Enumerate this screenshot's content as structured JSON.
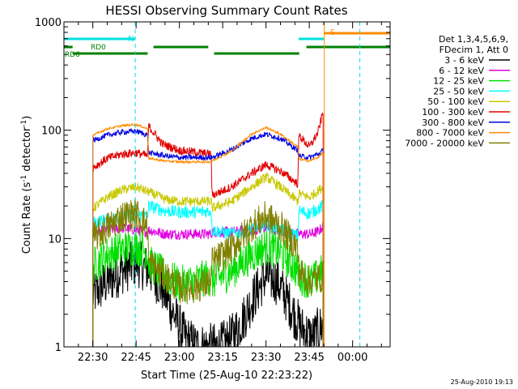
{
  "chart_data": {
    "type": "line",
    "title": "HESSI Observing Summary Count Rates",
    "xlabel": "Start Time (25-Aug-10 22:23:22)",
    "ylabel_main": "Count Rate (s",
    "ylabel_exp1": "-1",
    "ylabel_mid": " detector",
    "ylabel_exp2": "-1",
    "ylabel_end": ")",
    "yscale": "log",
    "ylim": [
      1,
      1000
    ],
    "xlim_minutes": [
      -10,
      103
    ],
    "x_ticks": [
      {
        "min": 0,
        "label": "22:30"
      },
      {
        "min": 15,
        "label": "22:45"
      },
      {
        "min": 30,
        "label": "23:00"
      },
      {
        "min": 45,
        "label": "23:15"
      },
      {
        "min": 60,
        "label": "23:30"
      },
      {
        "min": 75,
        "label": "23:45"
      },
      {
        "min": 90,
        "label": "00:00"
      }
    ],
    "y_ticks": [
      {
        "value": 1,
        "label": "1"
      },
      {
        "value": 10,
        "label": "10"
      },
      {
        "value": 100,
        "label": "100"
      },
      {
        "value": 1000,
        "label": "1000"
      }
    ],
    "legend": {
      "position": "right",
      "header": [
        "Det 1,3,4,5,6,9,",
        "FDecim 1, Att 0"
      ],
      "entries": [
        {
          "label": "3 - 6 keV",
          "color": "#000000"
        },
        {
          "label": "6 - 12 keV",
          "color": "#e000e0"
        },
        {
          "label": "12 - 25 keV",
          "color": "#00e000"
        },
        {
          "label": "25 - 50 keV",
          "color": "#00ffff"
        },
        {
          "label": "50 - 100 keV",
          "color": "#c8c800"
        },
        {
          "label": "100 - 300 keV",
          "color": "#e00000"
        },
        {
          "label": "300 - 800 keV",
          "color": "#0000e0"
        },
        {
          "label": "800 - 7000 keV",
          "color": "#ff8c00"
        },
        {
          "label": "7000 - 20000 keV",
          "color": "#808000"
        }
      ]
    },
    "segments": [
      {
        "from": 0,
        "to": 19.2
      },
      {
        "from": 19.2,
        "to": 41.2
      },
      {
        "from": 41.2,
        "to": 71.3
      },
      {
        "from": 71.3,
        "to": 79.8
      }
    ],
    "series": [
      {
        "name": "3 - 6 keV",
        "color": "#000000",
        "noise": 0.45,
        "points": [
          [
            0,
            3
          ],
          [
            5,
            4
          ],
          [
            10,
            5
          ],
          [
            15,
            6
          ],
          [
            20,
            5
          ],
          [
            24,
            3.5
          ],
          [
            28,
            2
          ],
          [
            32,
            1.2
          ],
          [
            36,
            1
          ],
          [
            40,
            1
          ],
          [
            44,
            1
          ],
          [
            48,
            1.2
          ],
          [
            52,
            1.8
          ],
          [
            56,
            3
          ],
          [
            60,
            4.5
          ],
          [
            64,
            4
          ],
          [
            68,
            2.5
          ],
          [
            72,
            1.5
          ],
          [
            76,
            1.2
          ],
          [
            79.8,
            1.6
          ]
        ]
      },
      {
        "name": "6 - 12 keV",
        "color": "#e000e0",
        "noise": 0.1,
        "points": [
          [
            0,
            11
          ],
          [
            5,
            12
          ],
          [
            10,
            12.5
          ],
          [
            15,
            12
          ],
          [
            19,
            11.5
          ],
          [
            19.3,
            12
          ],
          [
            25,
            11
          ],
          [
            30,
            11
          ],
          [
            35,
            11
          ],
          [
            41,
            11
          ],
          [
            41.3,
            11.5
          ],
          [
            48,
            11.5
          ],
          [
            55,
            12
          ],
          [
            60,
            12.5
          ],
          [
            65,
            12
          ],
          [
            71,
            11
          ],
          [
            71.4,
            11
          ],
          [
            75,
            11
          ],
          [
            78,
            11.5
          ],
          [
            79.8,
            13
          ]
        ]
      },
      {
        "name": "12 - 25 keV",
        "color": "#00e000",
        "noise": 0.35,
        "points": [
          [
            0,
            5.5
          ],
          [
            4,
            7
          ],
          [
            10,
            8
          ],
          [
            15,
            8.5
          ],
          [
            19,
            7.5
          ],
          [
            19.3,
            6
          ],
          [
            25,
            4.5
          ],
          [
            30,
            3.8
          ],
          [
            35,
            4
          ],
          [
            41,
            4.5
          ],
          [
            41.3,
            4
          ],
          [
            48,
            5
          ],
          [
            55,
            7
          ],
          [
            60,
            8.5
          ],
          [
            65,
            7.5
          ],
          [
            71,
            5
          ],
          [
            71.4,
            4.5
          ],
          [
            76,
            4
          ],
          [
            79.8,
            5
          ]
        ]
      },
      {
        "name": "25 - 50 keV",
        "color": "#00ffff",
        "noise": 0.12,
        "points": [
          [
            0,
            14
          ],
          [
            5,
            15
          ],
          [
            10,
            16
          ],
          [
            15,
            16.5
          ],
          [
            19,
            16
          ],
          [
            19.3,
            20
          ],
          [
            25,
            18
          ],
          [
            30,
            17.5
          ],
          [
            35,
            17.5
          ],
          [
            41,
            18
          ],
          [
            41.3,
            12
          ],
          [
            48,
            11
          ],
          [
            55,
            12
          ],
          [
            60,
            13.5
          ],
          [
            65,
            12
          ],
          [
            71,
            10.5
          ],
          [
            71.4,
            18
          ],
          [
            75,
            17
          ],
          [
            79.8,
            20
          ]
        ]
      },
      {
        "name": "50 - 100 keV",
        "color": "#c8c800",
        "noise": 0.09,
        "points": [
          [
            0,
            19
          ],
          [
            5,
            24
          ],
          [
            10,
            28
          ],
          [
            15,
            30
          ],
          [
            19,
            27
          ],
          [
            19.3,
            27
          ],
          [
            25,
            23
          ],
          [
            30,
            22
          ],
          [
            35,
            22
          ],
          [
            41,
            22
          ],
          [
            41.3,
            19
          ],
          [
            48,
            22
          ],
          [
            55,
            30
          ],
          [
            60,
            37
          ],
          [
            65,
            30
          ],
          [
            71,
            22
          ],
          [
            71.4,
            26
          ],
          [
            75,
            24
          ],
          [
            79.8,
            30
          ]
        ]
      },
      {
        "name": "100 - 300 keV",
        "color": "#e00000",
        "noise": 0.08,
        "points": [
          [
            0,
            45
          ],
          [
            5,
            55
          ],
          [
            10,
            60
          ],
          [
            15,
            62
          ],
          [
            19,
            58
          ],
          [
            19.3,
            110
          ],
          [
            24,
            75
          ],
          [
            30,
            65
          ],
          [
            35,
            63
          ],
          [
            41,
            60
          ],
          [
            41.3,
            25
          ],
          [
            48,
            30
          ],
          [
            55,
            40
          ],
          [
            60,
            48
          ],
          [
            65,
            42
          ],
          [
            71,
            32
          ],
          [
            71.4,
            90
          ],
          [
            75,
            70
          ],
          [
            78,
            95
          ],
          [
            79.8,
            150
          ]
        ]
      },
      {
        "name": "300 - 800 keV",
        "color": "#0000e0",
        "noise": 0.05,
        "points": [
          [
            0,
            80
          ],
          [
            5,
            90
          ],
          [
            10,
            96
          ],
          [
            15,
            98
          ],
          [
            19,
            90
          ],
          [
            19.3,
            62
          ],
          [
            25,
            58
          ],
          [
            30,
            56
          ],
          [
            35,
            56
          ],
          [
            41,
            56
          ],
          [
            41.3,
            56
          ],
          [
            48,
            66
          ],
          [
            55,
            84
          ],
          [
            60,
            92
          ],
          [
            65,
            84
          ],
          [
            71,
            65
          ],
          [
            71.4,
            58
          ],
          [
            75,
            56
          ],
          [
            78,
            60
          ],
          [
            79.8,
            65
          ]
        ]
      },
      {
        "name": "800 - 7000 keV",
        "color": "#ff8c00",
        "noise": 0.02,
        "points": [
          [
            0,
            90
          ],
          [
            5,
            103
          ],
          [
            10,
            110
          ],
          [
            15,
            113
          ],
          [
            19,
            103
          ],
          [
            19.3,
            55
          ],
          [
            25,
            52
          ],
          [
            30,
            51
          ],
          [
            35,
            51
          ],
          [
            41,
            51
          ],
          [
            41.3,
            52
          ],
          [
            48,
            64
          ],
          [
            55,
            92
          ],
          [
            60,
            106
          ],
          [
            65,
            92
          ],
          [
            71,
            70
          ],
          [
            71.4,
            54
          ],
          [
            75,
            52
          ],
          [
            78,
            56
          ],
          [
            79.8,
            62
          ]
        ]
      },
      {
        "name": "7000 - 20000 keV",
        "color": "#808000",
        "noise": 0.3,
        "points": [
          [
            0,
            10
          ],
          [
            4,
            12
          ],
          [
            10,
            16
          ],
          [
            15,
            17
          ],
          [
            19,
            13
          ],
          [
            19.3,
            6
          ],
          [
            25,
            4.5
          ],
          [
            30,
            3.5
          ],
          [
            35,
            3.5
          ],
          [
            41,
            4
          ],
          [
            41.3,
            6
          ],
          [
            48,
            8
          ],
          [
            55,
            13
          ],
          [
            60,
            16
          ],
          [
            65,
            13
          ],
          [
            71,
            8
          ],
          [
            71.4,
            5
          ],
          [
            75,
            4
          ],
          [
            79.8,
            4.5
          ]
        ]
      }
    ],
    "attenuator_bars": [
      {
        "name": "RD0",
        "color": "#008000",
        "from": -10,
        "to": -7,
        "level": 0
      },
      {
        "name": "RD0",
        "color": "#008000",
        "from": 21,
        "to": 40,
        "level": 0
      },
      {
        "name": "RD0",
        "color": "#008000",
        "from": 74,
        "to": 103,
        "level": 0
      },
      {
        "name": "RD6",
        "color": "#008000",
        "from": -7,
        "to": 19,
        "level": 1
      },
      {
        "name": "RD6",
        "color": "#008000",
        "from": 42,
        "to": 71.5,
        "level": 1
      },
      {
        "name": "cyan",
        "color": "#00e0e0",
        "from": -10,
        "to": 14.5,
        "level": -1
      },
      {
        "name": "cyan",
        "color": "#00e0e0",
        "from": 71.3,
        "to": 80,
        "level": -1
      },
      {
        "name": "orange",
        "color": "#ff8c00",
        "from": 80,
        "to": 103,
        "level": -2
      }
    ],
    "bar_labels": [
      {
        "text": "N",
        "color": "#00e0e0"
      },
      {
        "text": "S",
        "color": "#ff8c00"
      },
      {
        "text": "RD0",
        "color": "#008000"
      },
      {
        "text": "RD6",
        "color": "#008000"
      }
    ],
    "vlines": [
      {
        "min": 14.7,
        "color": "#00e0e0",
        "dashed": true
      },
      {
        "min": 80.2,
        "color": "#ff8c00",
        "dashed": false
      },
      {
        "min": 92.5,
        "color": "#00e0e0",
        "dashed": true
      }
    ],
    "footer_date": "25-Aug-2010 19:13"
  }
}
